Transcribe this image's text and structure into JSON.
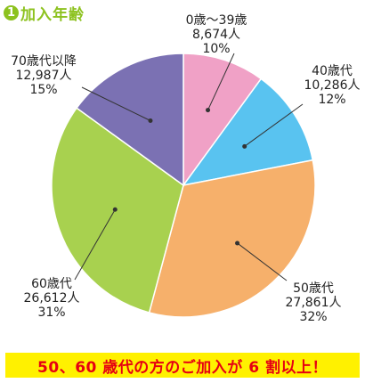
{
  "title": {
    "number": "1",
    "text": "加入年齢"
  },
  "banner": {
    "text": "50、60 歳代の方のご加入が 6 割以上！"
  },
  "chart_data": {
    "type": "pie",
    "title": "加入年齢",
    "slices": [
      {
        "label": "0歳～39歳",
        "count": "8,674人",
        "percent": "10%",
        "value": 8674,
        "color": "#f0a1c6"
      },
      {
        "label": "40歳代",
        "count": "10,286人",
        "percent": "12%",
        "value": 10286,
        "color": "#59c3f0"
      },
      {
        "label": "50歳代",
        "count": "27,861人",
        "percent": "32%",
        "value": 27861,
        "color": "#f6b06b"
      },
      {
        "label": "60歳代",
        "count": "26,612人",
        "percent": "31%",
        "value": 26612,
        "color": "#a8d14f"
      },
      {
        "label": "70歳代以降",
        "count": "12,987人",
        "percent": "15%",
        "value": 12987,
        "color": "#7b71b3"
      }
    ]
  }
}
